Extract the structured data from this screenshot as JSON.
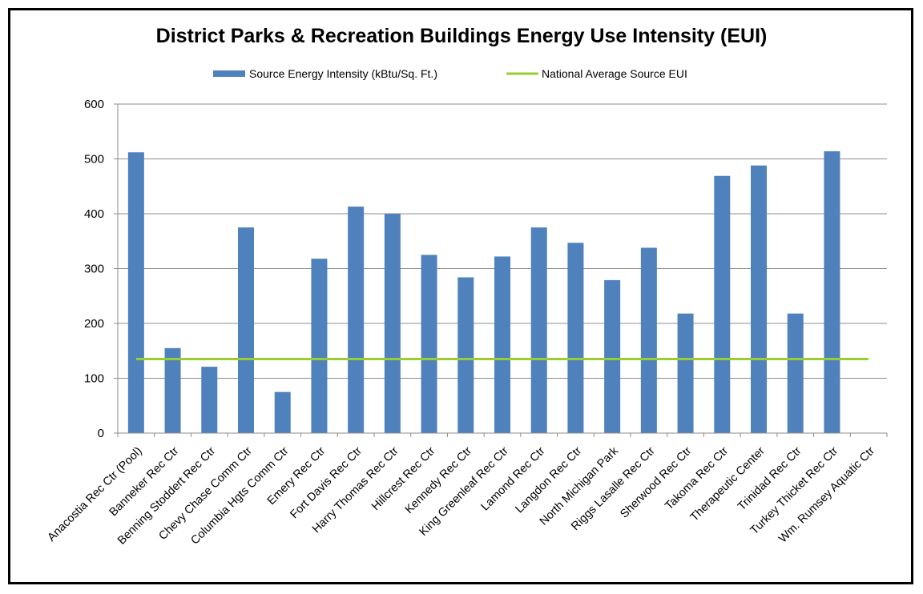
{
  "chart_data": {
    "type": "bar",
    "title": "District Parks & Recreation Buildings Energy Use Intensity (EUI)",
    "xlabel": "",
    "ylabel": "",
    "ylim": [
      0,
      600
    ],
    "yticks": [
      0,
      100,
      200,
      300,
      400,
      500,
      600
    ],
    "grid": "horizontal",
    "legend_position": "top",
    "categories": [
      "Anacostia Rec Ctr (Pool)",
      "Banneker Rec Ctr",
      "Benning Stoddert Rec Ctr",
      "Chevy Chase Comm Ctr",
      "Columbia Hgts Comm Ctr",
      "Emery Rec Ctr",
      "Fort Davis Rec Ctr",
      "Harry Thomas Rec Ctr",
      "Hillcrest Rec Ctr",
      "Kennedy Rec Ctr",
      "King Greenleaf Rec Ctr",
      "Lamond Rec Ctr",
      "Langdon Rec Ctr",
      "North Michigan Park",
      "Riggs Lasalle Rec Ctr",
      "Sherwood Rec Ctr",
      "Takoma Rec Ctr",
      "Therapeutic Center",
      "Trinidad Rec Ctr",
      "Turkey Thicket Rec Ctr",
      "Wm. Rumsey Aquatic Ctr"
    ],
    "series": [
      {
        "name": "Source Energy Intensity (kBtu/Sq. Ft.)",
        "type": "bar",
        "color": "#4f81bd",
        "values": [
          512,
          155,
          121,
          375,
          75,
          318,
          413,
          400,
          325,
          284,
          322,
          375,
          347,
          279,
          338,
          218,
          469,
          488,
          218,
          514,
          null
        ]
      },
      {
        "name": "National Average Source EUI",
        "type": "line",
        "color": "#9acd32",
        "values": [
          135,
          135,
          135,
          135,
          135,
          135,
          135,
          135,
          135,
          135,
          135,
          135,
          135,
          135,
          135,
          135,
          135,
          135,
          135,
          135,
          135
        ]
      }
    ]
  }
}
